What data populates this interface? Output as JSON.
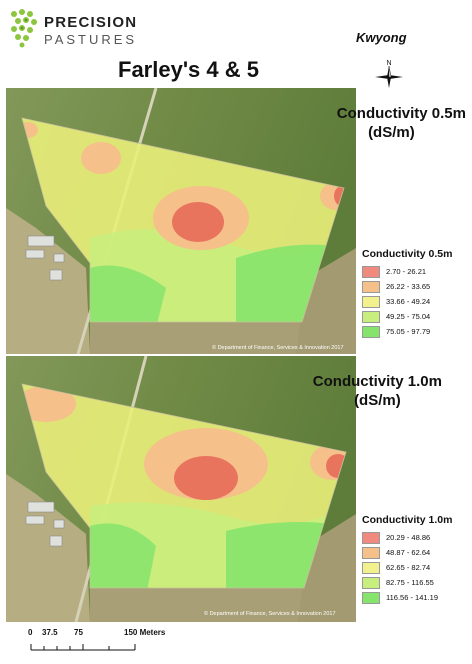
{
  "logo": {
    "line1": "PRECISION",
    "line2": "PASTURES",
    "colors": {
      "dots": "#8cc63f",
      "dots_dark": "#5a9a24"
    }
  },
  "header": {
    "location": "Kwyong",
    "title": "Farley's 4 & 5"
  },
  "north_arrow": {
    "icon": "north-arrow-icon",
    "label": "N"
  },
  "maps": [
    {
      "title_line1": "Conductivity 0.5m",
      "title_line2": "(dS/m)",
      "copyright": "© Department of Finance, Services & Innovation 2017",
      "legend": {
        "title": "Conductivity 0.5m",
        "classes": [
          {
            "label": "2.70 - 26.21",
            "color": "#f08a7e"
          },
          {
            "label": "26.22 - 33.65",
            "color": "#f5c08a"
          },
          {
            "label": "33.66 - 49.24",
            "color": "#f3f08e"
          },
          {
            "label": "49.25 - 75.04",
            "color": "#c8ef7e"
          },
          {
            "label": "75.05 - 97.79",
            "color": "#86e36c"
          }
        ]
      }
    },
    {
      "title_line1": "Conductivity 1.0m",
      "title_line2": "(dS/m)",
      "copyright": "© Department of Finance, Services & Innovation 2017",
      "legend": {
        "title": "Conductivity 1.0m",
        "classes": [
          {
            "label": "20.29 - 48.86",
            "color": "#f08a7e"
          },
          {
            "label": "48.87 - 62.64",
            "color": "#f5c08a"
          },
          {
            "label": "62.65 - 82.74",
            "color": "#f3f08e"
          },
          {
            "label": "82.75 - 116.55",
            "color": "#c8ef7e"
          },
          {
            "label": "116.56 - 141.19",
            "color": "#86e36c"
          }
        ]
      }
    }
  ],
  "scale": {
    "ticks": [
      "0",
      "37.5",
      "75",
      "150 Meters"
    ]
  },
  "colors": {
    "pasture_green": "#6f8a45",
    "pasture_tan": "#b7ad83",
    "paddock_base": "#e9ee7a"
  }
}
